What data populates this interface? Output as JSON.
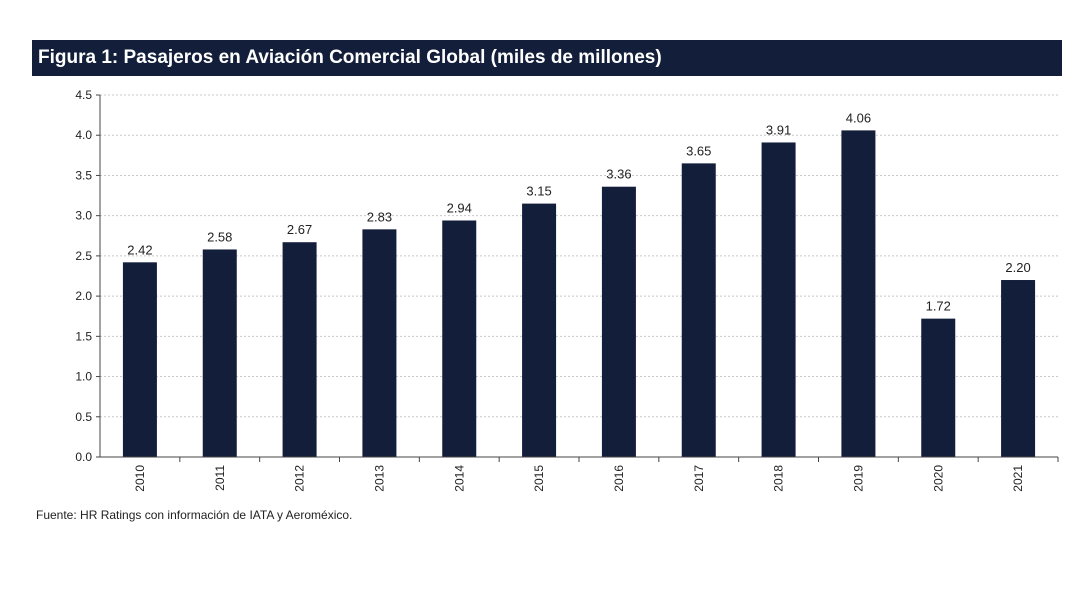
{
  "header": {
    "title": "Figura 1: Pasajeros en Aviación Comercial Global (miles de millones)"
  },
  "footer": {
    "source": "Fuente: HR Ratings con información de IATA y Aeroméxico."
  },
  "colors": {
    "bar": "#121e3a",
    "title_background": "#121e3a",
    "title_text": "#ffffff",
    "grid": "#c8c8c8"
  },
  "chart_data": {
    "type": "bar",
    "title": "Figura 1: Pasajeros en Aviación Comercial Global (miles de millones)",
    "categories": [
      "2010",
      "2011",
      "2012",
      "2013",
      "2014",
      "2015",
      "2016",
      "2017",
      "2018",
      "2019",
      "2020",
      "2021"
    ],
    "values": [
      2.42,
      2.58,
      2.67,
      2.83,
      2.94,
      3.15,
      3.36,
      3.65,
      3.91,
      4.06,
      1.72,
      2.2
    ],
    "data_labels": [
      "2.42",
      "2.58",
      "2.67",
      "2.83",
      "2.94",
      "3.15",
      "3.36",
      "3.65",
      "3.91",
      "4.06",
      "1.72",
      "2.20"
    ],
    "y_ticks": [
      "0.0",
      "0.5",
      "1.0",
      "1.5",
      "2.0",
      "2.5",
      "3.0",
      "3.5",
      "4.0",
      "4.5"
    ],
    "ylim": [
      0,
      4.5
    ],
    "xlabel": "",
    "ylabel": "",
    "grid": true,
    "legend": "none"
  }
}
